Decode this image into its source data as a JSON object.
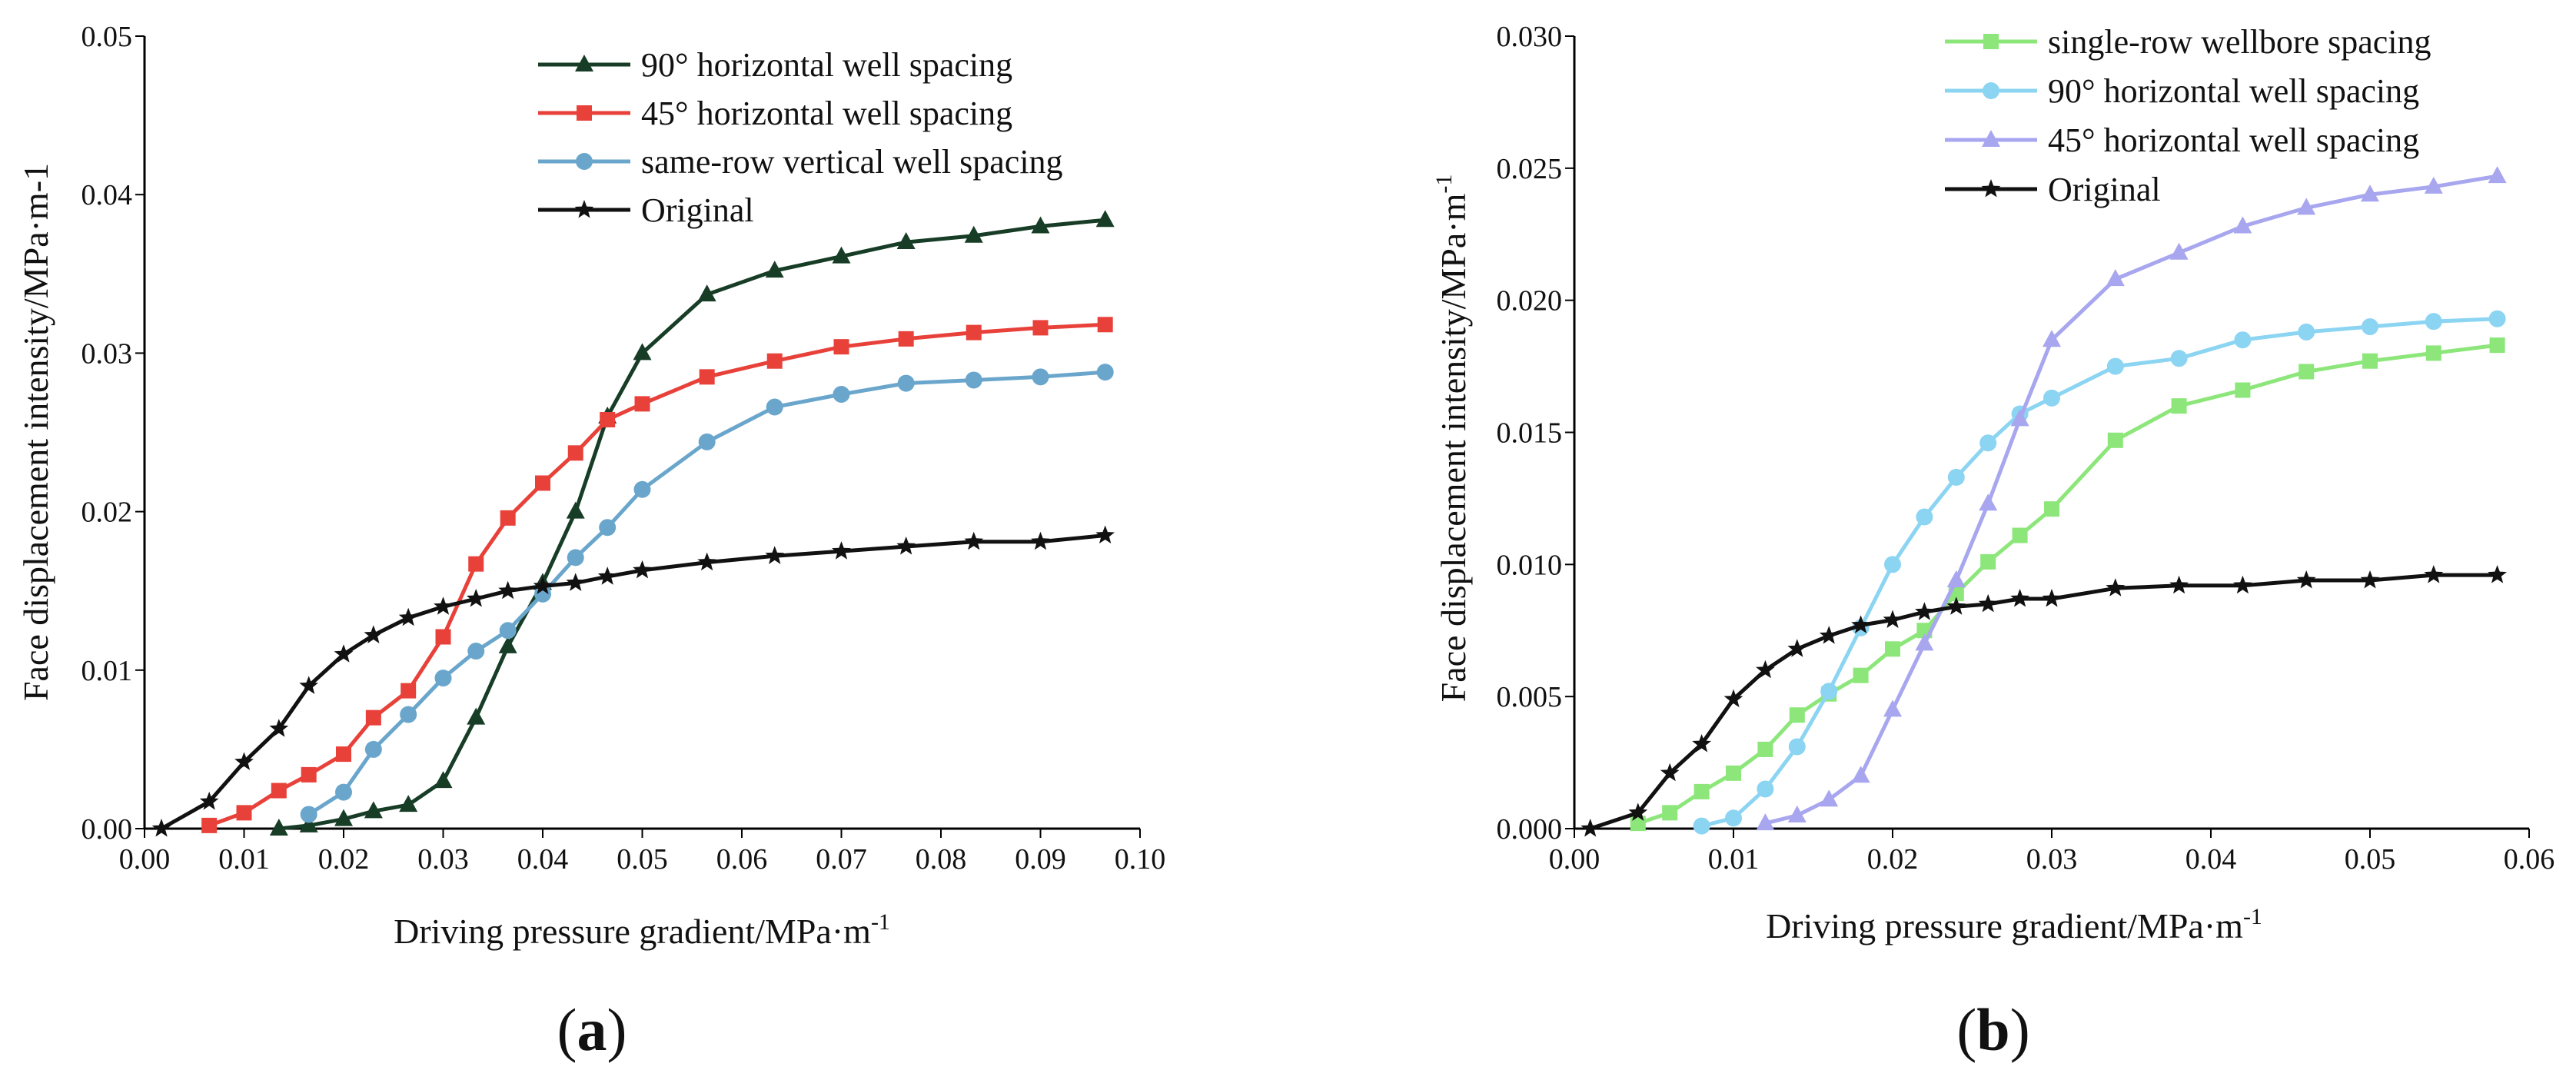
{
  "chart_data": [
    {
      "type": "line",
      "panel": "(a)",
      "panel_paren_open": "(",
      "panel_letter": "a",
      "panel_paren_close": ")",
      "xlabel": "Driving pressure gradient/MPa·m",
      "xlabel_sup": "-1",
      "ylabel": "Face displacement intensity/MPa·m-1",
      "xlim": [
        0,
        0.1
      ],
      "ylim": [
        0,
        0.05
      ],
      "xticks": [
        "0.00",
        "0.01",
        "0.02",
        "0.03",
        "0.04",
        "0.05",
        "0.06",
        "0.07",
        "0.08",
        "0.09",
        "0.10"
      ],
      "yticks": [
        "0.00",
        "0.01",
        "0.02",
        "0.03",
        "0.04",
        "0.05"
      ],
      "legend_position": "top-right",
      "series": [
        {
          "name": "90° horizontal well spacing",
          "color": "#173d27",
          "marker": "triangle",
          "x": [
            0.0135,
            0.0165,
            0.02,
            0.023,
            0.0265,
            0.03,
            0.0333,
            0.0365,
            0.04,
            0.0433,
            0.0465,
            0.05,
            0.0565,
            0.0633,
            0.07,
            0.0765,
            0.0833,
            0.09,
            0.0965
          ],
          "y": [
            0.0,
            0.0002,
            0.0006,
            0.0011,
            0.0015,
            0.003,
            0.007,
            0.0115,
            0.0155,
            0.02,
            0.026,
            0.03,
            0.0337,
            0.0352,
            0.0361,
            0.037,
            0.0374,
            0.038,
            0.0384
          ]
        },
        {
          "name": "45° horizontal well spacing",
          "color": "#e8413a",
          "marker": "square",
          "x": [
            0.0065,
            0.01,
            0.0135,
            0.0165,
            0.02,
            0.023,
            0.0265,
            0.03,
            0.0333,
            0.0365,
            0.04,
            0.0433,
            0.0465,
            0.05,
            0.0565,
            0.0633,
            0.07,
            0.0765,
            0.0833,
            0.09,
            0.0965
          ],
          "y": [
            0.0002,
            0.001,
            0.0024,
            0.0034,
            0.0047,
            0.007,
            0.0087,
            0.0121,
            0.0167,
            0.0196,
            0.0218,
            0.0237,
            0.0258,
            0.0268,
            0.0285,
            0.0295,
            0.0304,
            0.0309,
            0.0313,
            0.0316,
            0.0318
          ]
        },
        {
          "name": "same-row vertical well spacing",
          "color": "#6aa6cc",
          "marker": "circle",
          "x": [
            0.0165,
            0.02,
            0.023,
            0.0265,
            0.03,
            0.0333,
            0.0365,
            0.04,
            0.0433,
            0.0465,
            0.05,
            0.0565,
            0.0633,
            0.07,
            0.0765,
            0.0833,
            0.09,
            0.0965
          ],
          "y": [
            0.0009,
            0.0023,
            0.005,
            0.0072,
            0.0095,
            0.0112,
            0.0125,
            0.0148,
            0.0171,
            0.019,
            0.0214,
            0.0244,
            0.0266,
            0.0274,
            0.0281,
            0.0283,
            0.0285,
            0.0288
          ]
        },
        {
          "name": "Original",
          "color": "#111111",
          "marker": "star",
          "x": [
            0.0017,
            0.0065,
            0.01,
            0.0135,
            0.0165,
            0.02,
            0.023,
            0.0265,
            0.03,
            0.0333,
            0.0365,
            0.04,
            0.0433,
            0.0465,
            0.05,
            0.0565,
            0.0633,
            0.07,
            0.0765,
            0.0833,
            0.09,
            0.0965
          ],
          "y": [
            0.0,
            0.0017,
            0.0042,
            0.0063,
            0.009,
            0.011,
            0.0122,
            0.0133,
            0.014,
            0.0145,
            0.015,
            0.0153,
            0.0155,
            0.0159,
            0.0163,
            0.0168,
            0.0172,
            0.0175,
            0.0178,
            0.0181,
            0.0181,
            0.0185
          ]
        }
      ]
    },
    {
      "type": "line",
      "panel": "(b)",
      "panel_paren_open": "(",
      "panel_letter": "b",
      "panel_paren_close": ")",
      "xlabel": "Driving pressure gradient/MPa·m",
      "xlabel_sup": "-1",
      "ylabel": "Face displacement intensity/MPa·m",
      "ylabel_sup": "-1",
      "xlim": [
        0,
        0.06
      ],
      "ylim": [
        0,
        0.03
      ],
      "xticks": [
        "0.00",
        "0.01",
        "0.02",
        "0.03",
        "0.04",
        "0.05",
        "0.06"
      ],
      "yticks": [
        "0.000",
        "0.005",
        "0.010",
        "0.015",
        "0.020",
        "0.025",
        "0.030"
      ],
      "legend_position": "top-right",
      "series": [
        {
          "name": "single-row wellbore spacing",
          "color": "#8ce67a",
          "marker": "square",
          "x": [
            0.004,
            0.006,
            0.008,
            0.01,
            0.012,
            0.014,
            0.016,
            0.018,
            0.02,
            0.022,
            0.024,
            0.026,
            0.028,
            0.03,
            0.034,
            0.038,
            0.042,
            0.046,
            0.05,
            0.054,
            0.058
          ],
          "y": [
            0.0002,
            0.0006,
            0.0014,
            0.0021,
            0.003,
            0.0043,
            0.0051,
            0.0058,
            0.0068,
            0.0075,
            0.0089,
            0.0101,
            0.0111,
            0.0121,
            0.0147,
            0.016,
            0.0166,
            0.0173,
            0.0177,
            0.018,
            0.0183
          ]
        },
        {
          "name": "90° horizontal well spacing",
          "color": "#8bd4f2",
          "marker": "circle",
          "x": [
            0.008,
            0.01,
            0.012,
            0.014,
            0.016,
            0.018,
            0.02,
            0.022,
            0.024,
            0.026,
            0.028,
            0.03,
            0.034,
            0.038,
            0.042,
            0.046,
            0.05,
            0.054,
            0.058
          ],
          "y": [
            0.0001,
            0.0004,
            0.0015,
            0.0031,
            0.0052,
            0.0076,
            0.01,
            0.0118,
            0.0133,
            0.0146,
            0.0157,
            0.0163,
            0.0175,
            0.0178,
            0.0185,
            0.0188,
            0.019,
            0.0192,
            0.0193
          ]
        },
        {
          "name": "45° horizontal well spacing",
          "color": "#a7a6ef",
          "marker": "triangle",
          "x": [
            0.012,
            0.014,
            0.016,
            0.018,
            0.02,
            0.022,
            0.024,
            0.026,
            0.028,
            0.03,
            0.034,
            0.038,
            0.042,
            0.046,
            0.05,
            0.054,
            0.058
          ],
          "y": [
            0.0002,
            0.0005,
            0.0011,
            0.002,
            0.0045,
            0.007,
            0.0094,
            0.0123,
            0.0155,
            0.0185,
            0.0208,
            0.0218,
            0.0228,
            0.0235,
            0.024,
            0.0243,
            0.0247
          ]
        },
        {
          "name": "Original",
          "color": "#111111",
          "marker": "star",
          "x": [
            0.001,
            0.004,
            0.006,
            0.008,
            0.01,
            0.012,
            0.014,
            0.016,
            0.018,
            0.02,
            0.022,
            0.024,
            0.026,
            0.028,
            0.03,
            0.034,
            0.038,
            0.042,
            0.046,
            0.05,
            0.054,
            0.058
          ],
          "y": [
            0.0,
            0.0006,
            0.0021,
            0.0032,
            0.0049,
            0.006,
            0.0068,
            0.0073,
            0.0077,
            0.0079,
            0.0082,
            0.0084,
            0.0085,
            0.0087,
            0.0087,
            0.0091,
            0.0092,
            0.0092,
            0.0094,
            0.0094,
            0.0096,
            0.0096
          ]
        }
      ]
    }
  ]
}
